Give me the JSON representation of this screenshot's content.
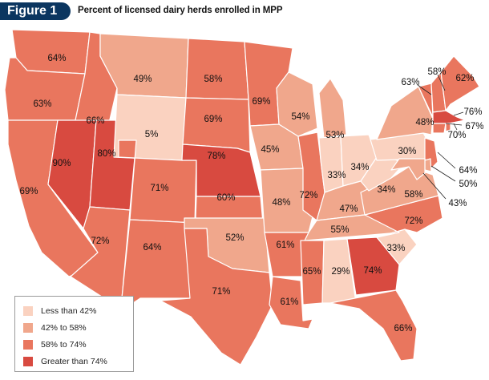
{
  "figure": {
    "badge": "Figure 1",
    "title": "Percent of licensed dairy herds enrolled in MPP"
  },
  "colors": {
    "less_than_42": "#fad2c0",
    "from_42_to_58": "#f0a78c",
    "from_58_to_74": "#e9765e",
    "greater_than_74": "#d84a40",
    "border": "#ffffff",
    "label": "#111111"
  },
  "legend": [
    {
      "label": "Less than 42%",
      "category": "less_than_42"
    },
    {
      "label": "42% to 58%",
      "category": "from_42_to_58"
    },
    {
      "label": "58% to 74%",
      "category": "from_58_to_74"
    },
    {
      "label": "Greater than 74%",
      "category": "greater_than_74"
    }
  ],
  "states": [
    {
      "name": "Washington",
      "label": "64%",
      "value": 64,
      "category": "from_58_to_74"
    },
    {
      "name": "Oregon",
      "label": "63%",
      "value": 63,
      "category": "from_58_to_74"
    },
    {
      "name": "California",
      "label": "69%",
      "value": 69,
      "category": "from_58_to_74"
    },
    {
      "name": "Idaho",
      "label": "66%",
      "value": 66,
      "category": "from_58_to_74"
    },
    {
      "name": "Nevada",
      "label": "90%",
      "value": 90,
      "category": "greater_than_74"
    },
    {
      "name": "Utah",
      "label": "80%",
      "value": 80,
      "category": "greater_than_74"
    },
    {
      "name": "Arizona",
      "label": "72%",
      "value": 72,
      "category": "from_58_to_74"
    },
    {
      "name": "Montana",
      "label": "49%",
      "value": 49,
      "category": "from_42_to_58"
    },
    {
      "name": "Wyoming",
      "label": "5%",
      "value": 5,
      "category": "less_than_42"
    },
    {
      "name": "Colorado",
      "label": "71%",
      "value": 71,
      "category": "from_58_to_74"
    },
    {
      "name": "New Mexico",
      "label": "64%",
      "value": 64,
      "category": "from_58_to_74"
    },
    {
      "name": "North Dakota",
      "label": "58%",
      "value": 58,
      "category": "from_58_to_74"
    },
    {
      "name": "South Dakota",
      "label": "69%",
      "value": 69,
      "category": "from_58_to_74"
    },
    {
      "name": "Nebraska",
      "label": "78%",
      "value": 78,
      "category": "greater_than_74"
    },
    {
      "name": "Kansas",
      "label": "60%",
      "value": 60,
      "category": "from_58_to_74"
    },
    {
      "name": "Oklahoma",
      "label": "52%",
      "value": 52,
      "category": "from_42_to_58"
    },
    {
      "name": "Texas",
      "label": "71%",
      "value": 71,
      "category": "from_58_to_74"
    },
    {
      "name": "Minnesota",
      "label": "69%",
      "value": 69,
      "category": "from_58_to_74"
    },
    {
      "name": "Iowa",
      "label": "45%",
      "value": 45,
      "category": "from_42_to_58"
    },
    {
      "name": "Missouri",
      "label": "48%",
      "value": 48,
      "category": "from_42_to_58"
    },
    {
      "name": "Arkansas",
      "label": "61%",
      "value": 61,
      "category": "from_58_to_74"
    },
    {
      "name": "Louisiana",
      "label": "61%",
      "value": 61,
      "category": "from_58_to_74"
    },
    {
      "name": "Wisconsin",
      "label": "54%",
      "value": 54,
      "category": "from_42_to_58"
    },
    {
      "name": "Illinois",
      "label": "72%",
      "value": 72,
      "category": "from_58_to_74"
    },
    {
      "name": "Michigan",
      "label": "53%",
      "value": 53,
      "category": "from_42_to_58"
    },
    {
      "name": "Indiana",
      "label": "33%",
      "value": 33,
      "category": "less_than_42"
    },
    {
      "name": "Ohio",
      "label": "34%",
      "value": 34,
      "category": "less_than_42"
    },
    {
      "name": "Kentucky",
      "label": "47%",
      "value": 47,
      "category": "from_42_to_58"
    },
    {
      "name": "Tennessee",
      "label": "55%",
      "value": 55,
      "category": "from_42_to_58"
    },
    {
      "name": "Mississippi",
      "label": "65%",
      "value": 65,
      "category": "from_58_to_74"
    },
    {
      "name": "Alabama",
      "label": "29%",
      "value": 29,
      "category": "less_than_42"
    },
    {
      "name": "Georgia",
      "label": "74%",
      "value": 74,
      "category": "greater_than_74"
    },
    {
      "name": "Florida",
      "label": "66%",
      "value": 66,
      "category": "from_58_to_74"
    },
    {
      "name": "South Carolina",
      "label": "33%",
      "value": 33,
      "category": "less_than_42"
    },
    {
      "name": "North Carolina",
      "label": "72%",
      "value": 72,
      "category": "from_58_to_74"
    },
    {
      "name": "Virginia",
      "label": "58%",
      "value": 58,
      "category": "from_42_to_58"
    },
    {
      "name": "West Virginia",
      "label": "34%",
      "value": 34,
      "category": "less_than_42"
    },
    {
      "name": "Pennsylvania",
      "label": "30%",
      "value": 30,
      "category": "less_than_42"
    },
    {
      "name": "New York",
      "label": "48%",
      "value": 48,
      "category": "from_42_to_58"
    },
    {
      "name": "Vermont",
      "label": "63%",
      "value": 63,
      "category": "from_58_to_74"
    },
    {
      "name": "New Hampshire",
      "label": "58%",
      "value": 58,
      "category": "from_58_to_74"
    },
    {
      "name": "Maine",
      "label": "62%",
      "value": 62,
      "category": "from_58_to_74"
    },
    {
      "name": "Massachusetts",
      "label": "76%",
      "value": 76,
      "category": "greater_than_74"
    },
    {
      "name": "Connecticut",
      "label": "67%",
      "value": 67,
      "category": "from_58_to_74"
    },
    {
      "name": "Rhode Island",
      "label": "70%",
      "value": 70,
      "category": "from_58_to_74"
    },
    {
      "name": "New Jersey",
      "label": "64%",
      "value": 64,
      "category": "from_58_to_74"
    },
    {
      "name": "Delaware",
      "label": "50%",
      "value": 50,
      "category": "from_42_to_58"
    },
    {
      "name": "Maryland",
      "label": "43%",
      "value": 43,
      "category": "from_42_to_58"
    }
  ]
}
